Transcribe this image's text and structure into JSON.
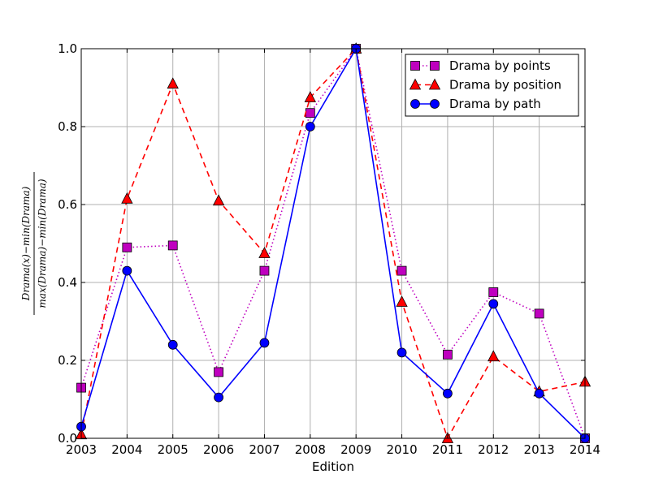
{
  "chart_data": {
    "type": "line",
    "xlabel": "Edition",
    "ylabel": {
      "numerator": "Drama(x)−min(Drama)",
      "denominator": "max(Drama)−min(Drama)"
    },
    "xlim": [
      2003,
      2014
    ],
    "ylim": [
      0.0,
      1.0
    ],
    "grid": true,
    "legend_position": "top-right",
    "x": [
      2003,
      2004,
      2005,
      2006,
      2007,
      2008,
      2009,
      2010,
      2011,
      2012,
      2013,
      2014
    ],
    "x_tick_labels": [
      "2003",
      "2004",
      "2005",
      "2006",
      "2007",
      "2008",
      "2009",
      "2010",
      "2011",
      "2012",
      "2013",
      "2014"
    ],
    "y_ticks": [
      0.0,
      0.2,
      0.4,
      0.6,
      0.8,
      1.0
    ],
    "y_tick_labels": [
      "0.0",
      "0.2",
      "0.4",
      "0.6",
      "0.8",
      "1.0"
    ],
    "series": [
      {
        "name": "Drama by points",
        "color": "#bf00bf",
        "line_style": "dotted",
        "marker": "square",
        "values": [
          0.13,
          0.49,
          0.495,
          0.17,
          0.43,
          0.835,
          1.0,
          0.43,
          0.215,
          0.375,
          0.32,
          0.0
        ]
      },
      {
        "name": "Drama by position",
        "color": "#ff0000",
        "line_style": "dashed",
        "marker": "triangle",
        "values": [
          0.01,
          0.615,
          0.91,
          0.61,
          0.475,
          0.875,
          1.0,
          0.35,
          0.0,
          0.21,
          0.12,
          0.145
        ]
      },
      {
        "name": "Drama by path",
        "color": "#0000ff",
        "line_style": "solid",
        "marker": "circle",
        "values": [
          0.03,
          0.43,
          0.24,
          0.105,
          0.245,
          0.8,
          1.0,
          0.22,
          0.115,
          0.345,
          0.115,
          0.0
        ]
      }
    ]
  }
}
